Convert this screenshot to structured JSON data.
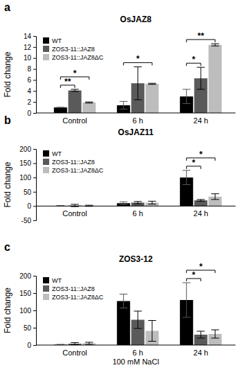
{
  "chart_data": [
    {
      "type": "bar",
      "panel": "a",
      "title": "OsJAZ8",
      "ylabel": "Fold change",
      "categories": [
        "Control",
        "6 h",
        "24 h"
      ],
      "series": [
        {
          "name": "WT",
          "color": "#000000",
          "values": [
            1.0,
            1.4,
            3.0
          ],
          "errors": [
            0.05,
            0.7,
            1.3
          ]
        },
        {
          "name": "ZOS3-11::JAZ8",
          "color": "#5a5a5a",
          "values": [
            4.1,
            5.4,
            6.3
          ],
          "errors": [
            0.2,
            3.0,
            2.0
          ]
        },
        {
          "name": "ZOS3-11::JAZ8ΔC",
          "color": "#bdbdbd",
          "values": [
            1.9,
            5.3,
            12.4
          ],
          "errors": [
            0.1,
            0.1,
            0.2
          ]
        }
      ],
      "ylim": [
        0,
        14
      ],
      "yticks": [
        0,
        2,
        4,
        6,
        8,
        10,
        12,
        14
      ],
      "legend": "upper left",
      "annotations": [
        {
          "text": "**",
          "category": "Control",
          "from": "WT",
          "to": "ZOS3-11::JAZ8"
        },
        {
          "text": "*",
          "category": "Control",
          "from": "WT",
          "to": "ZOS3-11::JAZ8ΔC"
        },
        {
          "text": "*",
          "category": "6 h",
          "from": "WT",
          "to": "ZOS3-11::JAZ8ΔC"
        },
        {
          "text": "*",
          "category": "24 h",
          "from": "WT",
          "to": "ZOS3-11::JAZ8"
        },
        {
          "text": "**",
          "category": "24 h",
          "from": "WT",
          "to": "ZOS3-11::JAZ8ΔC"
        }
      ]
    },
    {
      "type": "bar",
      "panel": "b",
      "title": "OsJAZ11",
      "ylabel": "Fold change",
      "categories": [
        "Control",
        "6 h",
        "24 h"
      ],
      "series": [
        {
          "name": "WT",
          "color": "#000000",
          "values": [
            1,
            10,
            100
          ],
          "errors": [
            0.5,
            5,
            25
          ]
        },
        {
          "name": "ZOS3-11::JAZ8",
          "color": "#5a5a5a",
          "values": [
            2,
            12,
            20
          ],
          "errors": [
            4,
            4,
            3
          ]
        },
        {
          "name": "ZOS3-11::JAZ8ΔC",
          "color": "#bdbdbd",
          "values": [
            1,
            12,
            33
          ],
          "errors": [
            2,
            5,
            10
          ]
        }
      ],
      "ylim": [
        -50,
        200
      ],
      "yticks": [
        -50,
        0,
        50,
        100,
        150,
        200
      ],
      "legend": "upper left",
      "annotations": [
        {
          "text": "*",
          "category": "24 h",
          "from": "WT",
          "to": "ZOS3-11::JAZ8"
        },
        {
          "text": "*",
          "category": "24 h",
          "from": "WT",
          "to": "ZOS3-11::JAZ8ΔC"
        }
      ]
    },
    {
      "type": "bar",
      "panel": "c",
      "title": "ZOS3-12",
      "ylabel": "Fold change",
      "xlabel": "100 mM NaCl",
      "categories": [
        "Control",
        "6 h",
        "24 h"
      ],
      "series": [
        {
          "name": "WT",
          "color": "#000000",
          "values": [
            1,
            127,
            130
          ],
          "errors": [
            1,
            20,
            50
          ]
        },
        {
          "name": "ZOS3-11::JAZ8",
          "color": "#5a5a5a",
          "values": [
            4,
            73,
            30
          ],
          "errors": [
            3,
            25,
            10
          ]
        },
        {
          "name": "ZOS3-11::JAZ8ΔC",
          "color": "#bdbdbd",
          "values": [
            5,
            41,
            32
          ],
          "errors": [
            3,
            30,
            12
          ]
        }
      ],
      "ylim": [
        0,
        200
      ],
      "yticks": [
        0,
        50,
        100,
        150,
        200
      ],
      "legend": "upper left",
      "annotations": [
        {
          "text": "*",
          "category": "24 h",
          "from": "WT",
          "to": "ZOS3-11::JAZ8"
        },
        {
          "text": "*",
          "category": "24 h",
          "from": "WT",
          "to": "ZOS3-11::JAZ8ΔC"
        }
      ]
    }
  ]
}
